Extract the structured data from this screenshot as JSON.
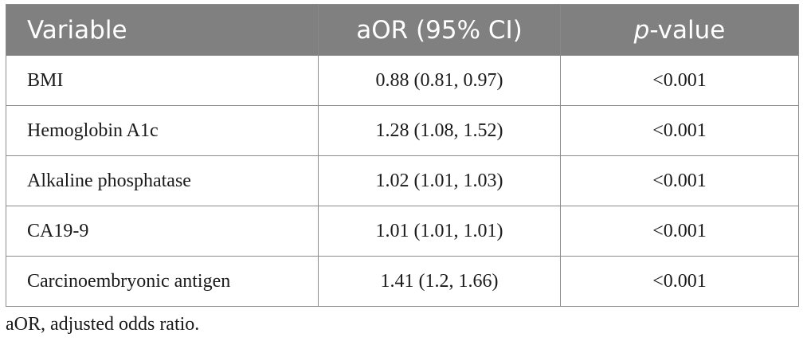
{
  "table": {
    "headers": {
      "variable": "Variable",
      "aor": "aOR (95% CI)",
      "p_italic": "p",
      "p_rest": "-value"
    },
    "rows": [
      {
        "variable": "BMI",
        "aor": "0.88 (0.81, 0.97)",
        "p": "<0.001"
      },
      {
        "variable": "Hemoglobin A1c",
        "aor": "1.28 (1.08, 1.52)",
        "p": "<0.001"
      },
      {
        "variable": "Alkaline phosphatase",
        "aor": "1.02 (1.01, 1.03)",
        "p": "<0.001"
      },
      {
        "variable": "CA19-9",
        "aor": "1.01 (1.01, 1.01)",
        "p": "<0.001"
      },
      {
        "variable": "Carcinoembryonic antigen",
        "aor": "1.41 (1.2, 1.66)",
        "p": "<0.001"
      }
    ]
  },
  "footnote": "aOR, adjusted odds ratio.",
  "colors": {
    "header_bg": "#808080",
    "header_text": "#ffffff",
    "border": "#8c8c8c"
  }
}
